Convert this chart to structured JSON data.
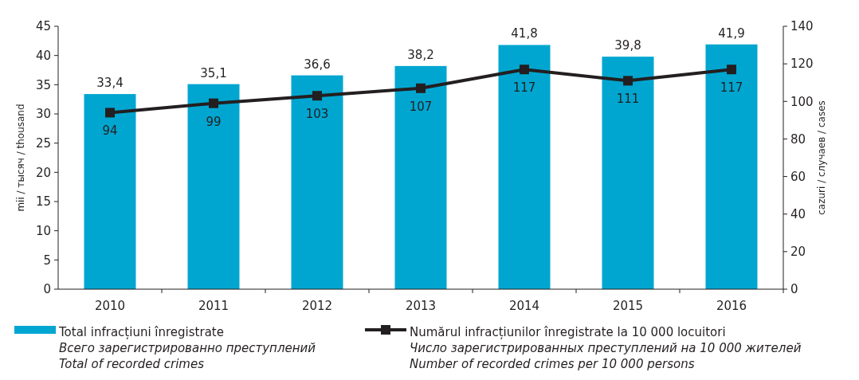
{
  "chart_data": {
    "type": "bar",
    "categories": [
      "2010",
      "2011",
      "2012",
      "2013",
      "2014",
      "2015",
      "2016"
    ],
    "ylabel": "mii / тысяч / thousand",
    "y2label": "cazuri / случаев / cases",
    "ylim": [
      0,
      45
    ],
    "yticks": [
      0,
      5,
      10,
      15,
      20,
      25,
      30,
      35,
      40,
      45
    ],
    "y2lim": [
      0,
      140
    ],
    "y2ticks": [
      0,
      20,
      40,
      60,
      80,
      100,
      120,
      140
    ],
    "legend": "bottom",
    "marker": "square",
    "grid": false,
    "series": [
      {
        "name": "Total infracțiuni înregistrate\nВсего зарегистрированно преступлений\nTotal of recorded crimes",
        "color": "#00a6d0",
        "values": [
          33.4,
          35.1,
          36.6,
          38.2,
          41.8,
          39.8,
          41.9
        ],
        "value_labels": [
          "33,4",
          "35,1",
          "36,6",
          "38,2",
          "41,8",
          "39,8",
          "41,9"
        ]
      },
      {
        "name": "Numărul infracțiunilor înregistrate la 10 000 locuitori\nЧисло зарегистрированных преступлений на 10 000 жителей\nNumber of recorded crimes per 10 000 persons",
        "type": "line",
        "axis": "y2",
        "color": "#231f20",
        "values": [
          94,
          99,
          103,
          107,
          117,
          111,
          117
        ],
        "value_labels": [
          "94",
          "99",
          "103",
          "107",
          "117",
          "111",
          "117"
        ]
      }
    ]
  }
}
